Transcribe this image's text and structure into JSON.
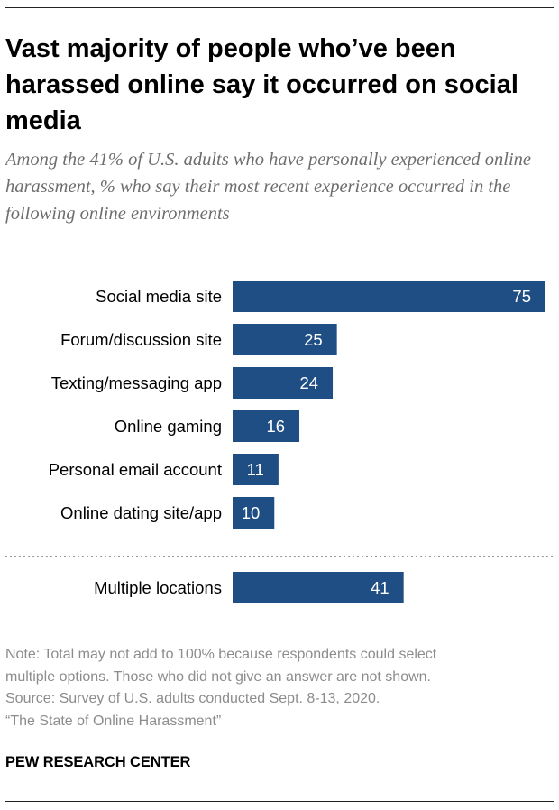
{
  "title": "Vast majority of people who’ve been harassed online say it occurred on social media",
  "subtitle": "Among the 41% of U.S. adults who have personally experienced online harassment, % who say their most recent experience occurred in the following online environments",
  "notes": [
    "Note: Total may not add to 100% because respondents could select",
    "multiple options. Those who did not give an answer are not shown.",
    "Source: Survey of U.S. adults conducted Sept. 8-13, 2020.",
    "“The State of Online Harassment”"
  ],
  "brand": "PEW RESEARCH CENTER",
  "colors": {
    "bar": "#1f4e85",
    "bar_label": "#ffffff",
    "divider": "#9a9a9a"
  },
  "chart_data": {
    "type": "bar",
    "orientation": "horizontal",
    "xlim": [
      0,
      75
    ],
    "groups": [
      {
        "categories": [
          "Social media site",
          "Forum/discussion site",
          "Texting/messaging app",
          "Online gaming",
          "Personal email account",
          "Online dating site/app"
        ],
        "values": [
          75,
          25,
          24,
          16,
          11,
          10
        ]
      },
      {
        "categories": [
          "Multiple locations"
        ],
        "values": [
          41
        ]
      }
    ],
    "divider_between_groups": "dotted",
    "data_labels": "inside-end",
    "grid": false
  }
}
